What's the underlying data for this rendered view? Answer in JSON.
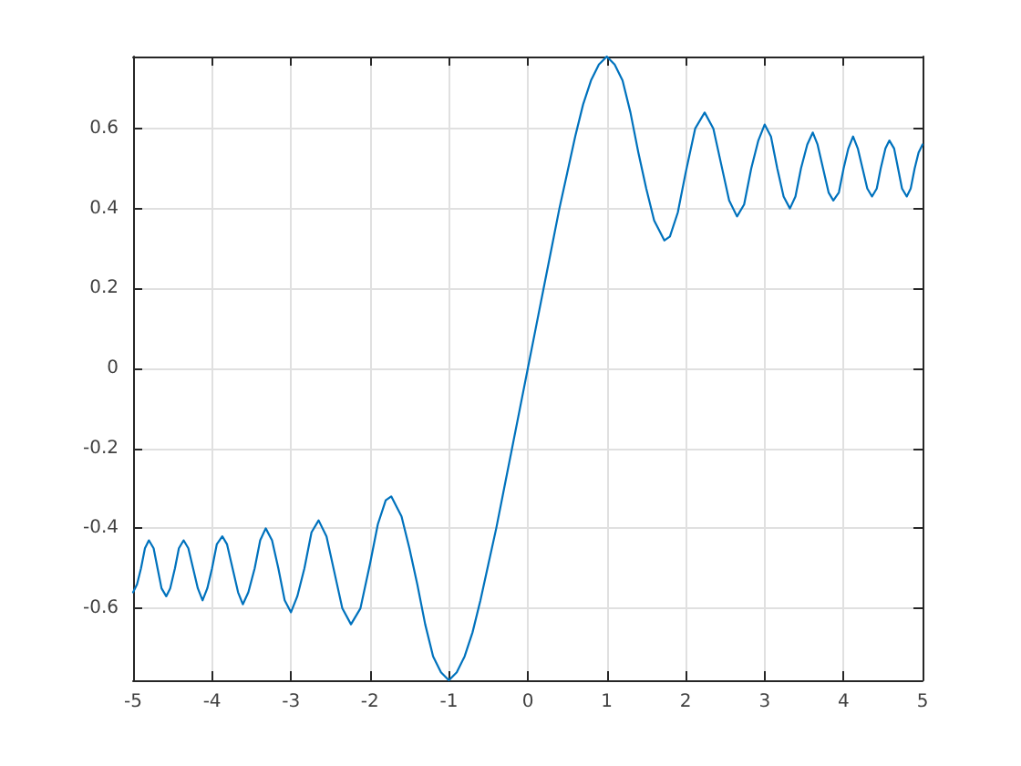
{
  "chart_data": {
    "type": "line",
    "x": [
      -5,
      -4.95,
      -4.9,
      -4.85,
      -4.8,
      -4.74,
      -4.69,
      -4.64,
      -4.58,
      -4.53,
      -4.47,
      -4.42,
      -4.36,
      -4.3,
      -4.24,
      -4.18,
      -4.12,
      -4.06,
      -4,
      -3.94,
      -3.87,
      -3.81,
      -3.74,
      -3.67,
      -3.61,
      -3.54,
      -3.46,
      -3.39,
      -3.32,
      -3.24,
      -3.16,
      -3.08,
      -3,
      -2.92,
      -2.83,
      -2.74,
      -2.65,
      -2.55,
      -2.45,
      -2.35,
      -2.24,
      -2.12,
      -2,
      -1.9,
      -1.8,
      -1.73,
      -1.6,
      -1.5,
      -1.4,
      -1.3,
      -1.2,
      -1.1,
      -1,
      -0.9,
      -0.8,
      -0.7,
      -0.6,
      -0.5,
      -0.4,
      -0.3,
      -0.2,
      -0.1,
      0,
      0.1,
      0.2,
      0.3,
      0.4,
      0.5,
      0.6,
      0.7,
      0.8,
      0.9,
      1,
      1.1,
      1.2,
      1.3,
      1.4,
      1.5,
      1.6,
      1.73,
      1.8,
      1.9,
      2,
      2.12,
      2.24,
      2.35,
      2.45,
      2.55,
      2.65,
      2.74,
      2.83,
      2.92,
      3,
      3.08,
      3.16,
      3.24,
      3.32,
      3.39,
      3.46,
      3.54,
      3.61,
      3.67,
      3.74,
      3.81,
      3.87,
      3.94,
      4,
      4.06,
      4.12,
      4.18,
      4.24,
      4.3,
      4.36,
      4.42,
      4.47,
      4.53,
      4.58,
      4.64,
      4.69,
      4.74,
      4.8,
      4.85,
      4.9,
      4.95,
      5
    ],
    "series": [
      {
        "color": "#0072bd",
        "values": [
          -0.56,
          -0.54,
          -0.5,
          -0.45,
          -0.43,
          -0.45,
          -0.5,
          -0.55,
          -0.57,
          -0.55,
          -0.5,
          -0.45,
          -0.43,
          -0.45,
          -0.5,
          -0.55,
          -0.58,
          -0.55,
          -0.5,
          -0.44,
          -0.42,
          -0.44,
          -0.5,
          -0.56,
          -0.59,
          -0.56,
          -0.5,
          -0.43,
          -0.4,
          -0.43,
          -0.5,
          -0.58,
          -0.61,
          -0.57,
          -0.5,
          -0.41,
          -0.38,
          -0.42,
          -0.51,
          -0.6,
          -0.64,
          -0.6,
          -0.49,
          -0.39,
          -0.33,
          -0.32,
          -0.37,
          -0.45,
          -0.54,
          -0.64,
          -0.72,
          -0.76,
          -0.78,
          -0.76,
          -0.72,
          -0.66,
          -0.58,
          -0.49,
          -0.4,
          -0.3,
          -0.2,
          -0.1,
          0,
          0.1,
          0.2,
          0.3,
          0.4,
          0.49,
          0.58,
          0.66,
          0.72,
          0.76,
          0.78,
          0.76,
          0.72,
          0.64,
          0.54,
          0.45,
          0.37,
          0.32,
          0.33,
          0.39,
          0.49,
          0.6,
          0.64,
          0.6,
          0.51,
          0.42,
          0.38,
          0.41,
          0.5,
          0.57,
          0.61,
          0.58,
          0.5,
          0.43,
          0.4,
          0.43,
          0.5,
          0.56,
          0.59,
          0.56,
          0.5,
          0.44,
          0.42,
          0.44,
          0.5,
          0.55,
          0.58,
          0.55,
          0.5,
          0.45,
          0.43,
          0.45,
          0.5,
          0.55,
          0.57,
          0.55,
          0.5,
          0.45,
          0.43,
          0.45,
          0.5,
          0.54,
          0.56
        ]
      }
    ],
    "xlim": [
      -5,
      5
    ],
    "xticks": [
      -5,
      -4,
      -3,
      -2,
      -1,
      0,
      1,
      2,
      3,
      4,
      5
    ],
    "ylim": [
      -0.78,
      0.78
    ],
    "yticks": [
      -0.6,
      -0.4,
      -0.2,
      0,
      0.2,
      0.4,
      0.6
    ],
    "grid": true,
    "marker": "none",
    "line_style": "solid"
  }
}
